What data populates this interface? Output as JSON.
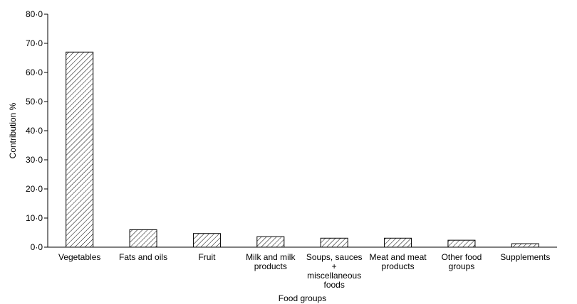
{
  "chart_data": {
    "type": "bar",
    "categories": [
      [
        "Vegetables"
      ],
      [
        "Fats and oils"
      ],
      [
        "Fruit"
      ],
      [
        "Milk and milk",
        "products"
      ],
      [
        "Soups, sauces",
        "+",
        "miscellaneous",
        "foods"
      ],
      [
        "Meat and meat",
        "products"
      ],
      [
        "Other food",
        "groups"
      ],
      [
        "Supplements"
      ]
    ],
    "values": [
      67.0,
      6.0,
      4.7,
      3.6,
      3.1,
      3.1,
      2.4,
      1.2
    ],
    "xlabel": "Food groups",
    "ylabel": "Contribution %",
    "ylim": [
      0,
      80
    ],
    "yticks": [
      0,
      10,
      20,
      30,
      40,
      50,
      60,
      70,
      80
    ],
    "ytick_labels": [
      "0·0",
      "10·0",
      "20·0",
      "30·0",
      "40·0",
      "50·0",
      "60·0",
      "70·0",
      "80·0"
    ],
    "bar_fill": "hatched",
    "bar_color": "#000000",
    "grid": false,
    "legend": "none"
  }
}
